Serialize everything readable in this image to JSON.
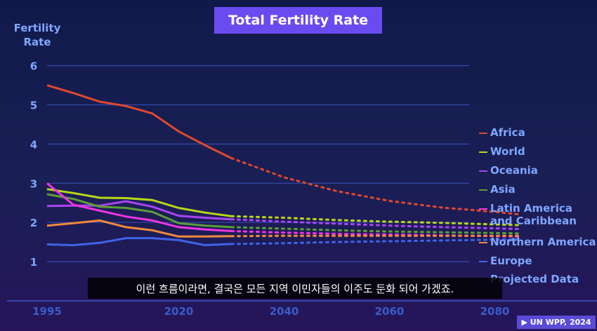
{
  "chart_data": {
    "type": "line",
    "title": "Total Fertility Rate",
    "ylabel": "Fertility\nRate",
    "xlabel": "",
    "xlim": [
      1995,
      2090
    ],
    "ylim": [
      0,
      6.3
    ],
    "x_ticks": [
      1995,
      2020,
      2040,
      2060,
      2080
    ],
    "y_ticks": [
      1,
      2,
      3,
      4,
      5,
      6
    ],
    "grid": "horizontal",
    "legend_position": "right",
    "projection_start": 2030,
    "series": [
      {
        "name": "Africa",
        "color": "#e0482f",
        "actual": [
          [
            1995,
            5.5
          ],
          [
            2000,
            5.3
          ],
          [
            2005,
            5.08
          ],
          [
            2010,
            4.97
          ],
          [
            2015,
            4.78
          ],
          [
            2020,
            4.32
          ],
          [
            2025,
            3.97
          ],
          [
            2030,
            3.64
          ]
        ],
        "projected": [
          [
            2030,
            3.64
          ],
          [
            2040,
            3.15
          ],
          [
            2050,
            2.8
          ],
          [
            2060,
            2.55
          ],
          [
            2070,
            2.38
          ],
          [
            2080,
            2.27
          ],
          [
            2085,
            2.2
          ]
        ]
      },
      {
        "name": "World",
        "color": "#b9d818",
        "actual": [
          [
            1995,
            2.85
          ],
          [
            2000,
            2.75
          ],
          [
            2005,
            2.63
          ],
          [
            2010,
            2.62
          ],
          [
            2015,
            2.57
          ],
          [
            2020,
            2.37
          ],
          [
            2025,
            2.25
          ],
          [
            2030,
            2.16
          ]
        ],
        "projected": [
          [
            2030,
            2.16
          ],
          [
            2040,
            2.12
          ],
          [
            2050,
            2.06
          ],
          [
            2060,
            2.02
          ],
          [
            2070,
            1.99
          ],
          [
            2080,
            1.95
          ],
          [
            2085,
            1.93
          ]
        ]
      },
      {
        "name": "Oceania",
        "color": "#a845f0",
        "actual": [
          [
            1995,
            2.42
          ],
          [
            2000,
            2.43
          ],
          [
            2005,
            2.43
          ],
          [
            2010,
            2.54
          ],
          [
            2015,
            2.4
          ],
          [
            2020,
            2.17
          ],
          [
            2025,
            2.12
          ],
          [
            2030,
            2.08
          ]
        ],
        "projected": [
          [
            2030,
            2.08
          ],
          [
            2040,
            2.02
          ],
          [
            2050,
            1.97
          ],
          [
            2060,
            1.92
          ],
          [
            2070,
            1.88
          ],
          [
            2080,
            1.85
          ],
          [
            2085,
            1.83
          ]
        ]
      },
      {
        "name": "Asia",
        "color": "#5c9e38",
        "actual": [
          [
            1995,
            2.72
          ],
          [
            2000,
            2.6
          ],
          [
            2005,
            2.4
          ],
          [
            2010,
            2.37
          ],
          [
            2015,
            2.27
          ],
          [
            2020,
            1.98
          ],
          [
            2025,
            1.92
          ],
          [
            2030,
            1.88
          ]
        ],
        "projected": [
          [
            2030,
            1.88
          ],
          [
            2040,
            1.84
          ],
          [
            2050,
            1.8
          ],
          [
            2060,
            1.77
          ],
          [
            2070,
            1.75
          ],
          [
            2080,
            1.73
          ],
          [
            2085,
            1.72
          ]
        ]
      },
      {
        "name": "Latin America\nand Caribbean",
        "color": "#ef35e0",
        "actual": [
          [
            1995,
            3.0
          ],
          [
            2000,
            2.45
          ],
          [
            2005,
            2.3
          ],
          [
            2010,
            2.15
          ],
          [
            2015,
            2.05
          ],
          [
            2020,
            1.88
          ],
          [
            2025,
            1.82
          ],
          [
            2030,
            1.78
          ]
        ],
        "projected": [
          [
            2030,
            1.78
          ],
          [
            2040,
            1.74
          ],
          [
            2050,
            1.71
          ],
          [
            2060,
            1.69
          ],
          [
            2070,
            1.67
          ],
          [
            2080,
            1.65
          ],
          [
            2085,
            1.64
          ]
        ]
      },
      {
        "name": "Northern America",
        "color": "#f08a3a",
        "actual": [
          [
            1995,
            1.92
          ],
          [
            2000,
            1.98
          ],
          [
            2005,
            2.05
          ],
          [
            2010,
            1.88
          ],
          [
            2015,
            1.8
          ],
          [
            2020,
            1.64
          ],
          [
            2025,
            1.64
          ],
          [
            2030,
            1.65
          ]
        ],
        "projected": [
          [
            2030,
            1.65
          ],
          [
            2040,
            1.66
          ],
          [
            2050,
            1.66
          ],
          [
            2060,
            1.66
          ],
          [
            2070,
            1.66
          ],
          [
            2080,
            1.66
          ],
          [
            2085,
            1.66
          ]
        ]
      },
      {
        "name": "Europe",
        "color": "#3f63e8",
        "actual": [
          [
            1995,
            1.44
          ],
          [
            2000,
            1.42
          ],
          [
            2005,
            1.48
          ],
          [
            2010,
            1.6
          ],
          [
            2015,
            1.6
          ],
          [
            2020,
            1.55
          ],
          [
            2025,
            1.42
          ],
          [
            2030,
            1.45
          ]
        ],
        "projected": [
          [
            2030,
            1.45
          ],
          [
            2040,
            1.47
          ],
          [
            2050,
            1.5
          ],
          [
            2060,
            1.52
          ],
          [
            2070,
            1.54
          ],
          [
            2080,
            1.56
          ],
          [
            2085,
            1.57
          ]
        ]
      }
    ],
    "legend_extra": {
      "name": "Projected Data",
      "color": "#7ea6ff"
    }
  },
  "subtitle": "이런 흐름이라면, 결국은 모든 지역 이민자들의 이주도 둔화 되어 가겠죠.",
  "source_badge": "▶ UN WPP, 2024"
}
